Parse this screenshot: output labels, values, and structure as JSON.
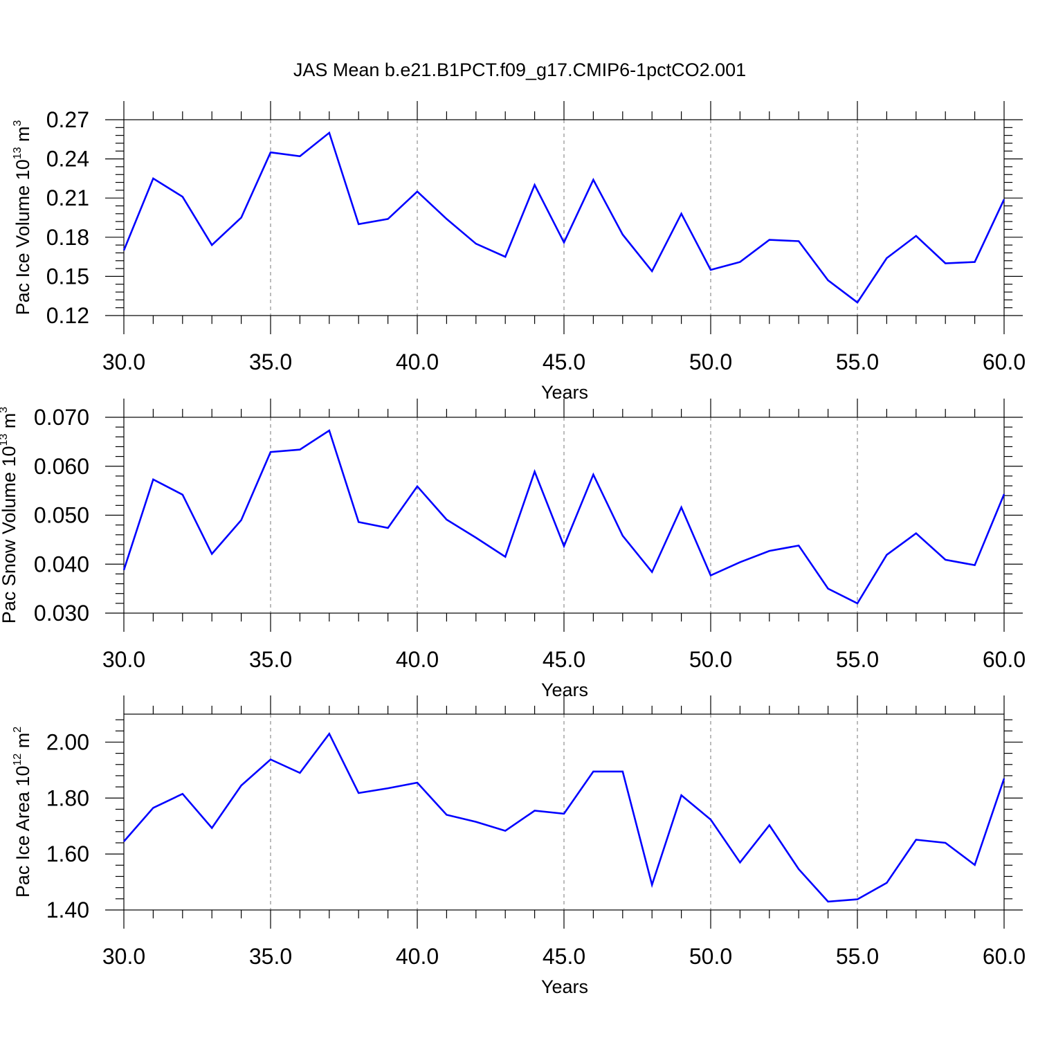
{
  "title": "JAS Mean b.e21.B1PCT.f09_g17.CMIP6-1pctCO2.001",
  "chart_data": [
    {
      "type": "line",
      "xlabel": "Years",
      "ylabel_parts": [
        "Pac Ice Volume 10",
        "13",
        " m",
        "3"
      ],
      "xlim": [
        30,
        60
      ],
      "ylim": [
        0.12,
        0.27
      ],
      "xticks": [
        "30.0",
        "35.0",
        "40.0",
        "45.0",
        "50.0",
        "55.0",
        "60.0"
      ],
      "yticks": [
        "0.12",
        "0.15",
        "0.18",
        "0.21",
        "0.24",
        "0.27"
      ],
      "grid": "dashed vertical at major x ticks",
      "line_color": "#0000ff",
      "x": [
        30,
        31,
        32,
        33,
        34,
        35,
        36,
        37,
        38,
        39,
        40,
        41,
        42,
        43,
        44,
        45,
        46,
        47,
        48,
        49,
        50,
        51,
        52,
        53,
        54,
        55,
        56,
        57,
        58,
        59,
        60
      ],
      "values": [
        0.17,
        0.225,
        0.211,
        0.174,
        0.195,
        0.245,
        0.242,
        0.26,
        0.19,
        0.194,
        0.215,
        0.194,
        0.175,
        0.165,
        0.22,
        0.176,
        0.224,
        0.182,
        0.154,
        0.198,
        0.155,
        0.161,
        0.178,
        0.177,
        0.147,
        0.13,
        0.164,
        0.181,
        0.16,
        0.161,
        0.209
      ]
    },
    {
      "type": "line",
      "xlabel": "Years",
      "ylabel_parts": [
        "Pac Snow Volume 10",
        "13",
        " m",
        "3"
      ],
      "xlim": [
        30,
        60
      ],
      "ylim": [
        0.03,
        0.07
      ],
      "xticks": [
        "30.0",
        "35.0",
        "40.0",
        "45.0",
        "50.0",
        "55.0",
        "60.0"
      ],
      "yticks": [
        "0.030",
        "0.040",
        "0.050",
        "0.060",
        "0.070"
      ],
      "grid": "dashed vertical at major x ticks",
      "line_color": "#0000ff",
      "x": [
        30,
        31,
        32,
        33,
        34,
        35,
        36,
        37,
        38,
        39,
        40,
        41,
        42,
        43,
        44,
        45,
        46,
        47,
        48,
        49,
        50,
        51,
        52,
        53,
        54,
        55,
        56,
        57,
        58,
        59,
        60
      ],
      "values": [
        0.0388,
        0.0573,
        0.0542,
        0.0421,
        0.049,
        0.0629,
        0.0634,
        0.0673,
        0.0486,
        0.0474,
        0.0559,
        0.0491,
        0.0454,
        0.0415,
        0.0589,
        0.0437,
        0.0583,
        0.0458,
        0.0384,
        0.0516,
        0.0377,
        0.0404,
        0.0427,
        0.0438,
        0.035,
        0.032,
        0.0419,
        0.0463,
        0.0409,
        0.0398,
        0.0543
      ]
    },
    {
      "type": "line",
      "xlabel": "Years",
      "ylabel_parts": [
        "Pac Ice Area 10",
        "12",
        " m",
        "2"
      ],
      "xlim": [
        30,
        60
      ],
      "ylim": [
        1.4,
        2.1
      ],
      "xticks": [
        "30.0",
        "35.0",
        "40.0",
        "45.0",
        "50.0",
        "55.0",
        "60.0"
      ],
      "yticks": [
        "1.40",
        "1.60",
        "1.80",
        "2.00"
      ],
      "grid": "dashed vertical at major x ticks",
      "line_color": "#0000ff",
      "x": [
        30,
        31,
        32,
        33,
        34,
        35,
        36,
        37,
        38,
        39,
        40,
        41,
        42,
        43,
        44,
        45,
        46,
        47,
        48,
        49,
        50,
        51,
        52,
        53,
        54,
        55,
        56,
        57,
        58,
        59,
        60
      ],
      "values": [
        1.645,
        1.765,
        1.815,
        1.693,
        1.845,
        1.938,
        1.89,
        2.03,
        1.818,
        1.835,
        1.855,
        1.74,
        1.715,
        1.683,
        1.755,
        1.744,
        1.895,
        1.895,
        1.49,
        1.81,
        1.723,
        1.57,
        1.703,
        1.546,
        1.43,
        1.438,
        1.497,
        1.651,
        1.64,
        1.561,
        1.87
      ]
    }
  ]
}
